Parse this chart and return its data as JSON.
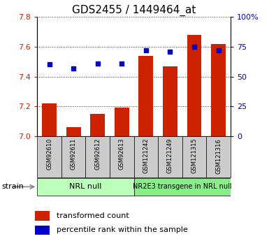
{
  "title": "GDS2455 / 1449464_at",
  "samples": [
    "GSM92610",
    "GSM92611",
    "GSM92612",
    "GSM92613",
    "GSM121242",
    "GSM121249",
    "GSM121315",
    "GSM121316"
  ],
  "bar_values": [
    7.22,
    7.06,
    7.15,
    7.19,
    7.54,
    7.47,
    7.68,
    7.62
  ],
  "percentile_values": [
    60,
    57,
    61,
    61,
    72,
    71,
    75,
    72
  ],
  "ylim_left": [
    7.0,
    7.8
  ],
  "ylim_right": [
    0,
    100
  ],
  "yticks_left": [
    7.0,
    7.2,
    7.4,
    7.6,
    7.8
  ],
  "yticks_right": [
    0,
    25,
    50,
    75,
    100
  ],
  "bar_color": "#cc2200",
  "dot_color": "#0000cc",
  "group1_label": "NRL null",
  "group2_label": "NR2E3 transgene in NRL null",
  "group1_color": "#bbffbb",
  "group2_color": "#88ee88",
  "strain_label": "strain",
  "legend_bar": "transformed count",
  "legend_dot": "percentile rank within the sample",
  "left_tick_color": "#cc2200",
  "right_tick_color": "#0000cc",
  "grid_color": "#333333",
  "tick_label_bg": "#cccccc",
  "bar_width": 0.6,
  "title_fontsize": 11,
  "tick_fontsize": 8,
  "legend_fontsize": 8,
  "sample_fontsize": 6,
  "group_fontsize": 8,
  "group2_fontsize": 7
}
